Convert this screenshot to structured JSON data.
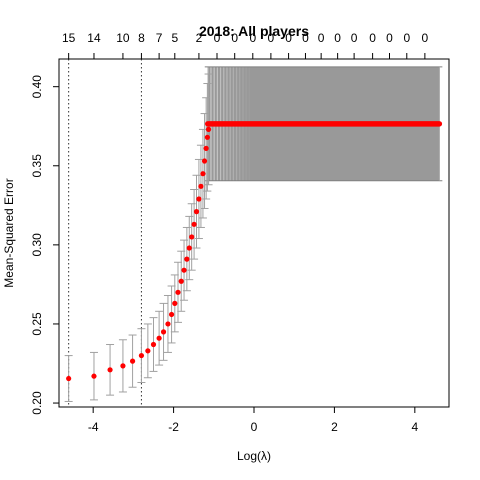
{
  "chart_data": {
    "type": "scatter",
    "title": "2018: All players",
    "xlabel": "Log(λ)",
    "ylabel": "Mean-Squared Error",
    "xlim": [
      -4.85,
      4.85
    ],
    "ylim": [
      0.1975,
      0.4175
    ],
    "x_ticks": [
      -4,
      -2,
      0,
      2,
      4
    ],
    "x_tick_labels": [
      "-4",
      "-2",
      "0",
      "2",
      "4"
    ],
    "y_ticks": [
      0.2,
      0.25,
      0.3,
      0.35,
      0.4
    ],
    "y_tick_labels": [
      "0.20",
      "0.25",
      "0.30",
      "0.35",
      "0.40"
    ],
    "top_axis": {
      "positions": [
        -4.61,
        -3.98,
        -3.26,
        -2.8,
        -2.36,
        -1.97,
        -1.37,
        -0.92,
        -0.48,
        -0.03,
        0.42,
        0.86,
        1.28,
        1.67,
        2.08,
        2.49,
        2.95,
        3.37,
        3.8,
        4.25
      ],
      "labels": [
        "15",
        "14",
        "10",
        "8",
        "7",
        "5",
        "2",
        "0",
        "0",
        "0",
        "0",
        "0",
        "0",
        "0",
        "0",
        "0",
        "0",
        "0",
        "0",
        "0"
      ]
    },
    "vlines": [
      -4.61,
      -2.8
    ],
    "plateau": {
      "x_start": -1.15,
      "x_end": 4.61,
      "mse": 0.3765,
      "lower": 0.3405,
      "upper": 0.4125
    },
    "points": [
      {
        "x": -4.61,
        "mse": 0.2155,
        "lower": 0.201,
        "upper": 0.23
      },
      {
        "x": -3.98,
        "mse": 0.217,
        "lower": 0.202,
        "upper": 0.232
      },
      {
        "x": -3.58,
        "mse": 0.221,
        "lower": 0.205,
        "upper": 0.237
      },
      {
        "x": -3.26,
        "mse": 0.2235,
        "lower": 0.207,
        "upper": 0.24
      },
      {
        "x": -3.02,
        "mse": 0.2265,
        "lower": 0.21,
        "upper": 0.243
      },
      {
        "x": -2.8,
        "mse": 0.23,
        "lower": 0.213,
        "upper": 0.247
      },
      {
        "x": -2.64,
        "mse": 0.233,
        "lower": 0.216,
        "upper": 0.25
      },
      {
        "x": -2.5,
        "mse": 0.237,
        "lower": 0.22,
        "upper": 0.254
      },
      {
        "x": -2.36,
        "mse": 0.241,
        "lower": 0.224,
        "upper": 0.258
      },
      {
        "x": -2.25,
        "mse": 0.245,
        "lower": 0.227,
        "upper": 0.263
      },
      {
        "x": -2.14,
        "mse": 0.25,
        "lower": 0.232,
        "upper": 0.268
      },
      {
        "x": -2.05,
        "mse": 0.256,
        "lower": 0.238,
        "upper": 0.274
      },
      {
        "x": -1.97,
        "mse": 0.263,
        "lower": 0.245,
        "upper": 0.281
      },
      {
        "x": -1.89,
        "mse": 0.27,
        "lower": 0.251,
        "upper": 0.289
      },
      {
        "x": -1.81,
        "mse": 0.277,
        "lower": 0.258,
        "upper": 0.296
      },
      {
        "x": -1.74,
        "mse": 0.284,
        "lower": 0.265,
        "upper": 0.303
      },
      {
        "x": -1.67,
        "mse": 0.291,
        "lower": 0.271,
        "upper": 0.311
      },
      {
        "x": -1.61,
        "mse": 0.298,
        "lower": 0.278,
        "upper": 0.318
      },
      {
        "x": -1.55,
        "mse": 0.305,
        "lower": 0.284,
        "upper": 0.326
      },
      {
        "x": -1.49,
        "mse": 0.313,
        "lower": 0.291,
        "upper": 0.335
      },
      {
        "x": -1.43,
        "mse": 0.321,
        "lower": 0.298,
        "upper": 0.344
      },
      {
        "x": -1.37,
        "mse": 0.329,
        "lower": 0.304,
        "upper": 0.354
      },
      {
        "x": -1.32,
        "mse": 0.337,
        "lower": 0.311,
        "upper": 0.363
      },
      {
        "x": -1.27,
        "mse": 0.345,
        "lower": 0.317,
        "upper": 0.373
      },
      {
        "x": -1.23,
        "mse": 0.353,
        "lower": 0.323,
        "upper": 0.383
      },
      {
        "x": -1.19,
        "mse": 0.361,
        "lower": 0.329,
        "upper": 0.393
      },
      {
        "x": -1.16,
        "mse": 0.368,
        "lower": 0.334,
        "upper": 0.402
      },
      {
        "x": -1.13,
        "mse": 0.373,
        "lower": 0.338,
        "upper": 0.408
      }
    ],
    "colors": {
      "point": "#ff0000",
      "errorbar": "#a0a0a0",
      "plateau_band": "#999999",
      "vline": "#333333"
    }
  }
}
